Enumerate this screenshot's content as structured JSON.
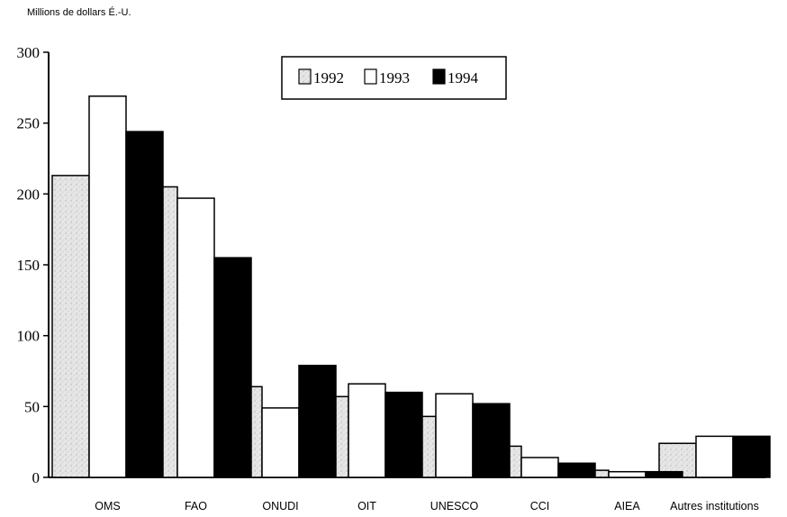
{
  "chart_data": {
    "type": "bar",
    "ylabel": "Millions de dollars É.-U.",
    "xlabel": "",
    "title": "",
    "ylim": [
      0,
      300
    ],
    "yticks": [
      0,
      50,
      100,
      150,
      200,
      250,
      300
    ],
    "grid": false,
    "legend_position": "top-center",
    "categories": [
      "OMS",
      "FAO",
      "ONUDI",
      "OIT",
      "UNESCO",
      "CCI",
      "AIEA",
      "Autres institutions"
    ],
    "series": [
      {
        "name": "1992",
        "values": [
          213,
          205,
          64,
          57,
          43,
          22,
          5,
          24
        ]
      },
      {
        "name": "1993",
        "values": [
          269,
          197,
          49,
          66,
          59,
          14,
          4,
          29
        ]
      },
      {
        "name": "1994",
        "values": [
          244,
          155,
          79,
          60,
          52,
          10,
          4,
          29
        ]
      }
    ],
    "colors": {
      "1992": "#dcdcdc",
      "1993": "#ffffff",
      "1994": "#000000"
    }
  }
}
